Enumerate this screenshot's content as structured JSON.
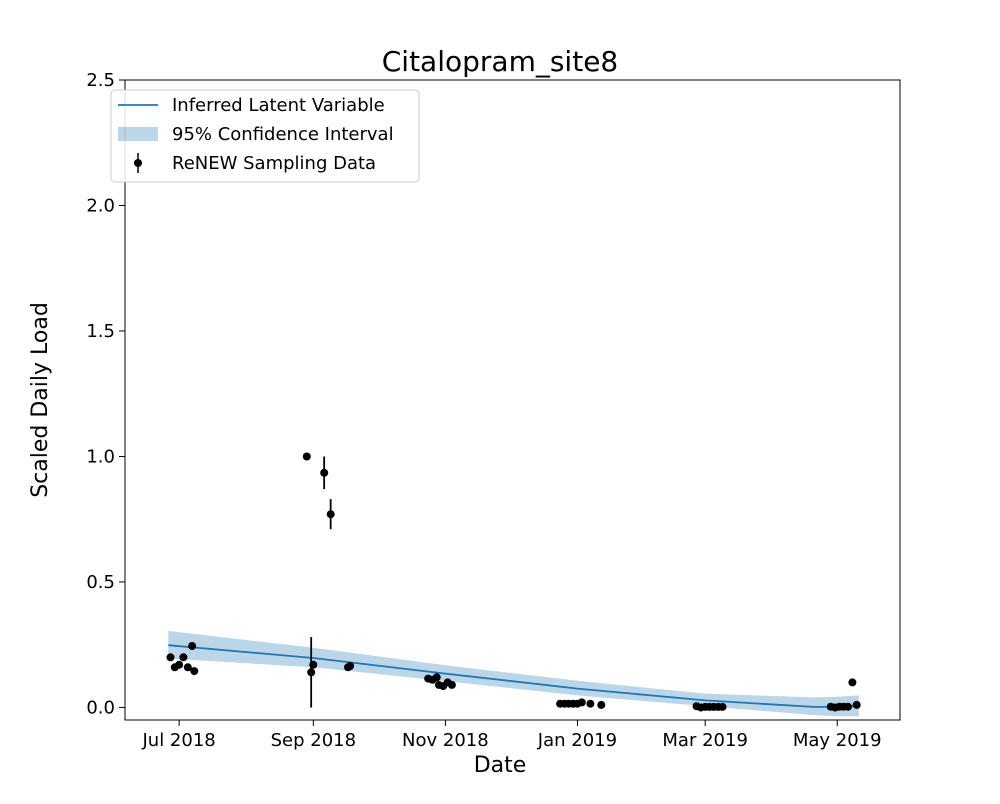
{
  "chart_data": {
    "type": "line",
    "title": "Citalopram_site8",
    "xlabel": "Date",
    "ylabel": "Scaled Daily Load",
    "ylim": [
      -0.05,
      2.5
    ],
    "xlim": [
      "2018-06-06",
      "2019-05-30"
    ],
    "x_ticks": [
      {
        "date": "2018-07-01",
        "label": "Jul 2018"
      },
      {
        "date": "2018-09-01",
        "label": "Sep 2018"
      },
      {
        "date": "2018-11-01",
        "label": "Nov 2018"
      },
      {
        "date": "2019-01-01",
        "label": "Jan 2019"
      },
      {
        "date": "2019-03-01",
        "label": "Mar 2019"
      },
      {
        "date": "2019-05-01",
        "label": "May 2019"
      }
    ],
    "y_ticks": [
      {
        "value": 0.0,
        "label": "0.0"
      },
      {
        "value": 0.5,
        "label": "0.5"
      },
      {
        "value": 1.0,
        "label": "1.0"
      },
      {
        "value": 1.5,
        "label": "1.5"
      },
      {
        "value": 2.0,
        "label": "2.0"
      },
      {
        "value": 2.5,
        "label": "2.5"
      }
    ],
    "grid": false,
    "legend": {
      "position": "top-left",
      "entries": [
        {
          "label": "Inferred Latent Variable",
          "kind": "line"
        },
        {
          "label": "95% Confidence Interval",
          "kind": "band"
        },
        {
          "label": "ReNEW Sampling Data",
          "kind": "errorbar"
        }
      ]
    },
    "colors": {
      "line": "#1f77b4",
      "band": "#1f77b4",
      "band_opacity": 0.3,
      "points": "#000000"
    },
    "latent": [
      {
        "x": "2018-06-26",
        "y": 0.248,
        "lo": 0.195,
        "hi": 0.305
      },
      {
        "x": "2018-09-01",
        "y": 0.197,
        "lo": 0.16,
        "hi": 0.238
      },
      {
        "x": "2018-11-01",
        "y": 0.135,
        "lo": 0.105,
        "hi": 0.168
      },
      {
        "x": "2019-01-01",
        "y": 0.075,
        "lo": 0.048,
        "hi": 0.106
      },
      {
        "x": "2019-03-01",
        "y": 0.028,
        "lo": 0.005,
        "hi": 0.055
      },
      {
        "x": "2019-04-20",
        "y": 0.002,
        "lo": -0.03,
        "hi": 0.04
      },
      {
        "x": "2019-04-30",
        "y": 0.002,
        "lo": -0.035,
        "hi": 0.042
      },
      {
        "x": "2019-05-11",
        "y": 0.006,
        "lo": -0.035,
        "hi": 0.048
      }
    ],
    "samples": [
      {
        "x": "2018-06-27",
        "y": 0.2
      },
      {
        "x": "2018-06-29",
        "y": 0.16
      },
      {
        "x": "2018-07-01",
        "y": 0.17
      },
      {
        "x": "2018-07-03",
        "y": 0.2
      },
      {
        "x": "2018-07-05",
        "y": 0.16
      },
      {
        "x": "2018-07-07",
        "y": 0.245
      },
      {
        "x": "2018-07-08",
        "y": 0.145
      },
      {
        "x": "2018-08-29",
        "y": 1.0
      },
      {
        "x": "2018-08-31",
        "y": 0.14,
        "err": 0.14
      },
      {
        "x": "2018-09-01",
        "y": 0.17
      },
      {
        "x": "2018-09-06",
        "y": 0.935,
        "err": 0.065
      },
      {
        "x": "2018-09-09",
        "y": 0.77,
        "err": 0.06
      },
      {
        "x": "2018-09-17",
        "y": 0.16
      },
      {
        "x": "2018-09-18",
        "y": 0.165
      },
      {
        "x": "2018-10-24",
        "y": 0.115
      },
      {
        "x": "2018-10-26",
        "y": 0.11
      },
      {
        "x": "2018-10-28",
        "y": 0.12
      },
      {
        "x": "2018-10-29",
        "y": 0.09
      },
      {
        "x": "2018-10-31",
        "y": 0.085
      },
      {
        "x": "2018-11-02",
        "y": 0.1
      },
      {
        "x": "2018-11-04",
        "y": 0.09
      },
      {
        "x": "2018-12-24",
        "y": 0.015
      },
      {
        "x": "2018-12-26",
        "y": 0.015
      },
      {
        "x": "2018-12-28",
        "y": 0.015
      },
      {
        "x": "2018-12-30",
        "y": 0.015
      },
      {
        "x": "2019-01-01",
        "y": 0.015
      },
      {
        "x": "2019-01-03",
        "y": 0.02
      },
      {
        "x": "2019-01-07",
        "y": 0.015
      },
      {
        "x": "2019-01-12",
        "y": 0.01
      },
      {
        "x": "2019-02-25",
        "y": 0.005
      },
      {
        "x": "2019-02-27",
        "y": 0.0
      },
      {
        "x": "2019-03-01",
        "y": 0.002
      },
      {
        "x": "2019-03-03",
        "y": 0.002
      },
      {
        "x": "2019-03-05",
        "y": 0.002
      },
      {
        "x": "2019-03-07",
        "y": 0.002
      },
      {
        "x": "2019-03-09",
        "y": 0.002
      },
      {
        "x": "2019-04-28",
        "y": 0.003
      },
      {
        "x": "2019-04-30",
        "y": 0.0
      },
      {
        "x": "2019-05-02",
        "y": 0.003
      },
      {
        "x": "2019-05-04",
        "y": 0.003
      },
      {
        "x": "2019-05-06",
        "y": 0.003
      },
      {
        "x": "2019-05-08",
        "y": 0.1
      },
      {
        "x": "2019-05-10",
        "y": 0.01
      }
    ]
  }
}
